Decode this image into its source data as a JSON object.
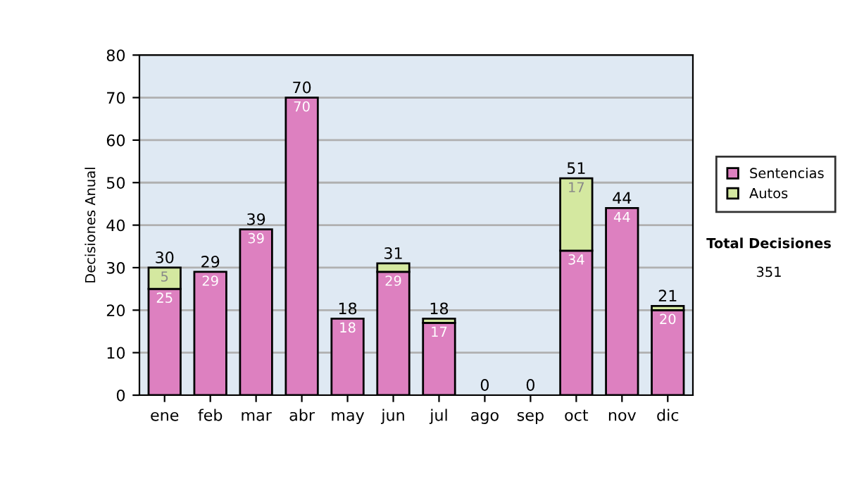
{
  "chart_data": {
    "type": "bar",
    "stacked": true,
    "ylabel": "Decisiones Anual",
    "categories": [
      "ene",
      "feb",
      "mar",
      "abr",
      "may",
      "jun",
      "jul",
      "ago",
      "sep",
      "oct",
      "nov",
      "dic"
    ],
    "series": [
      {
        "name": "Sentencias",
        "color": "#dd80c0",
        "values": [
          25,
          29,
          39,
          70,
          18,
          29,
          17,
          0,
          0,
          34,
          44,
          20
        ],
        "value_labels": [
          "25",
          "29",
          "39",
          "70",
          "18",
          "29",
          "17",
          null,
          null,
          "34",
          "44",
          "20"
        ]
      },
      {
        "name": "Autos",
        "color": "#d4e8a0",
        "values": [
          5,
          0,
          0,
          0,
          0,
          2,
          1,
          0,
          0,
          17,
          0,
          1
        ],
        "value_labels": [
          "5",
          null,
          null,
          null,
          null,
          null,
          null,
          null,
          null,
          "17",
          null,
          null
        ]
      }
    ],
    "totals": [
      "30",
      "29",
      "39",
      "70",
      "18",
      "31",
      "18",
      "0",
      "0",
      "51",
      "44",
      "21"
    ],
    "ylim": [
      0,
      80
    ],
    "yticks": [
      0,
      10,
      20,
      30,
      40,
      50,
      60,
      70,
      80
    ],
    "grid": "y",
    "legend": "right",
    "annotations": [
      "Total Decisiones",
      "351"
    ]
  }
}
